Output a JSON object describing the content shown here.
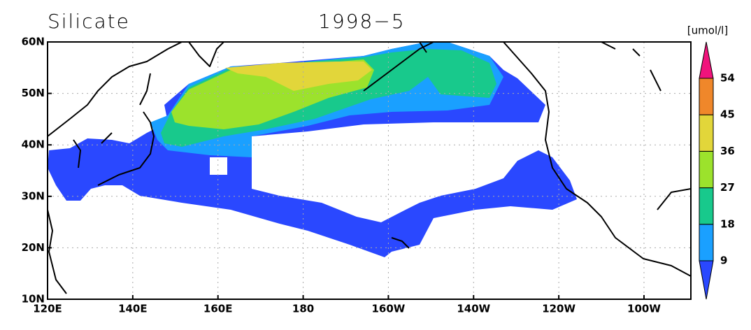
{
  "header": {
    "title": "Silicate",
    "date": "1998−5"
  },
  "map": {
    "xlim": [
      120,
      271
    ],
    "ylim": [
      10,
      60
    ],
    "xticks": [
      {
        "value": 120,
        "label": "120E"
      },
      {
        "value": 140,
        "label": "140E"
      },
      {
        "value": 160,
        "label": "160E"
      },
      180,
      {
        "value": 200,
        "label": "160W"
      },
      {
        "value": 220,
        "label": "140W"
      },
      {
        "value": 240,
        "label": "120W"
      },
      {
        "value": 260,
        "label": "100W"
      }
    ],
    "yticks": [
      {
        "value": 10,
        "label": "10N"
      },
      {
        "value": 20,
        "label": "20N"
      },
      {
        "value": 30,
        "label": "30N"
      },
      {
        "value": 40,
        "label": "40N"
      },
      {
        "value": 50,
        "label": "50N"
      },
      {
        "value": 60,
        "label": "60N"
      }
    ],
    "grid": true
  },
  "colorbar": {
    "unit": "[umol/l]",
    "levels": [
      9,
      18,
      27,
      36,
      45,
      54
    ],
    "colors": [
      "#2a48ff",
      "#1aa0ff",
      "#18c98c",
      "#9ce22c",
      "#e2d63a",
      "#f0872a",
      "#f0147c"
    ]
  }
}
